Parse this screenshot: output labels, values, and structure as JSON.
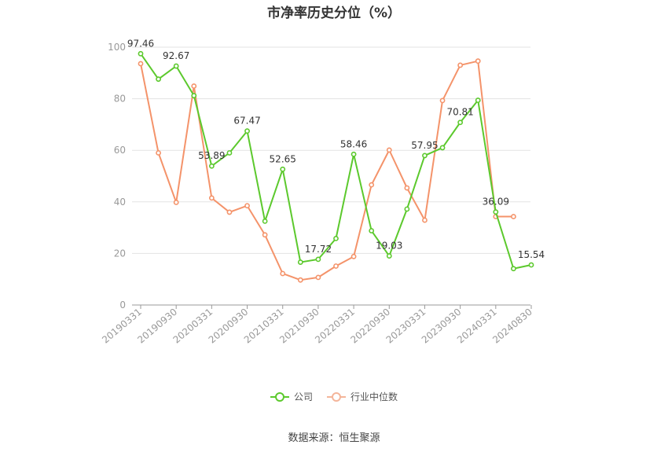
{
  "chart_data": {
    "type": "line",
    "title": "市净率历史分位（%）",
    "source": "数据来源：恒生聚源",
    "ylim": [
      0,
      100
    ],
    "y_ticks": [
      "0",
      "20",
      "40",
      "60",
      "80",
      "100"
    ],
    "x_tick_labels": [
      "20190331",
      "20190930",
      "20200331",
      "20200930",
      "20210331",
      "20210930",
      "20220331",
      "20220930",
      "20230331",
      "20230930",
      "20240331",
      "20240830"
    ],
    "x": [
      "20190331",
      "20190630",
      "20190930",
      "20191231",
      "20200331",
      "20200630",
      "20200930",
      "20201231",
      "20210331",
      "20210630",
      "20210930",
      "20211231",
      "20220331",
      "20220630",
      "20220930",
      "20221231",
      "20230331",
      "20230630",
      "20230930",
      "20231231",
      "20240331",
      "20240630",
      "20240830"
    ],
    "grid": true,
    "legend_position": "bottom",
    "series": [
      {
        "name": "公司",
        "color": "#5cc92d",
        "values": [
          97.46,
          87.6,
          92.67,
          81.2,
          53.89,
          59.0,
          67.47,
          32.5,
          52.65,
          16.6,
          17.72,
          25.8,
          58.46,
          28.8,
          19.03,
          37.2,
          57.95,
          61.0,
          70.81,
          79.4,
          36.09,
          14.1,
          15.54
        ],
        "labels": {
          "0": "97.46",
          "2": "92.67",
          "4": "53.89",
          "6": "67.47",
          "8": "52.65",
          "10": "17.72",
          "12": "58.46",
          "14": "19.03",
          "16": "57.95",
          "18": "70.81",
          "20": "36.09",
          "22": "15.54"
        }
      },
      {
        "name": "行业中位数",
        "color": "#f4936a",
        "values": [
          93.6,
          59.0,
          39.8,
          84.9,
          41.5,
          36.0,
          38.5,
          27.2,
          12.2,
          9.7,
          10.7,
          15.1,
          18.8,
          46.6,
          60.1,
          45.4,
          32.9,
          79.3,
          93.0,
          94.6,
          34.3,
          34.3,
          null
        ]
      }
    ]
  }
}
